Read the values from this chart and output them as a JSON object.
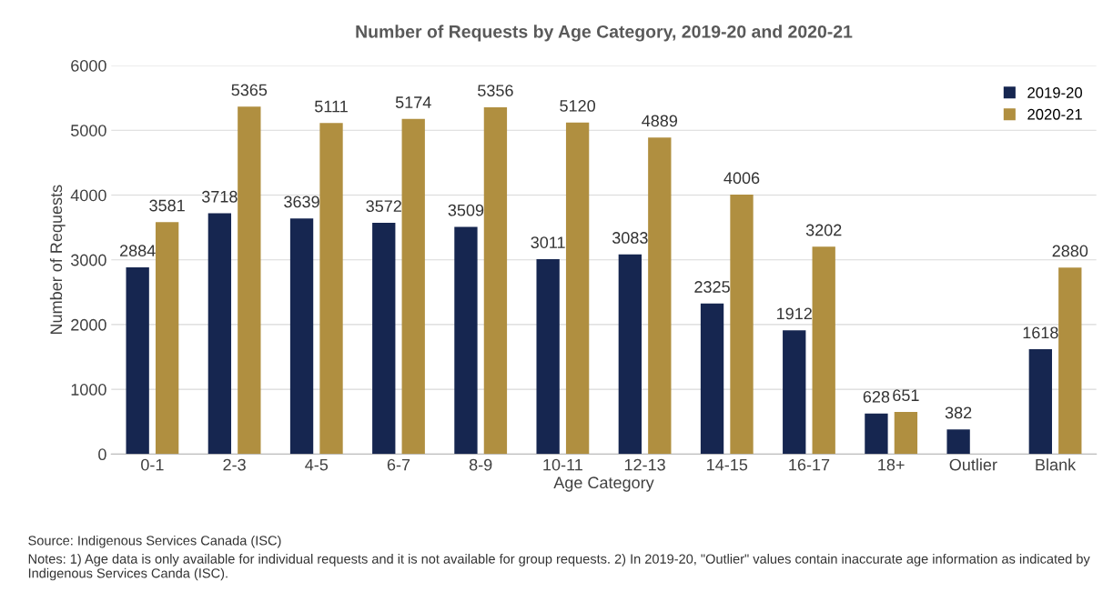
{
  "chart_data": {
    "type": "bar",
    "title": "Number of Requests by Age Category, 2019-20 and 2020-21",
    "xlabel": "Age Category",
    "ylabel": "Number of Requests",
    "categories": [
      "0-1",
      "2-3",
      "4-5",
      "6-7",
      "8-9",
      "10-11",
      "12-13",
      "14-15",
      "16-17",
      "18+",
      "Outlier",
      "Blank"
    ],
    "series": [
      {
        "name": "2019-20",
        "color": "#162650",
        "values": [
          2884,
          3718,
          3639,
          3572,
          3509,
          3011,
          3083,
          2325,
          1912,
          628,
          382,
          1618
        ]
      },
      {
        "name": "2020-21",
        "color": "#b08f40",
        "values": [
          3581,
          5365,
          5111,
          5174,
          5356,
          5120,
          4889,
          4006,
          3202,
          651,
          null,
          2880
        ]
      }
    ],
    "ylim": [
      0,
      6000
    ],
    "yticks": [
      0,
      1000,
      2000,
      3000,
      4000,
      5000,
      6000
    ],
    "grid": "y",
    "legend": "top right",
    "data_labels": true,
    "annotations": [
      "Source: Indigenous Services Canada (ISC)",
      "Notes: 1) Age data is only available for individual requests and it is not available for group requests. 2) In 2019-20, \"Outlier\" values contain inaccurate age information as indicated by Indigenous Services Canda (ISC)."
    ]
  }
}
